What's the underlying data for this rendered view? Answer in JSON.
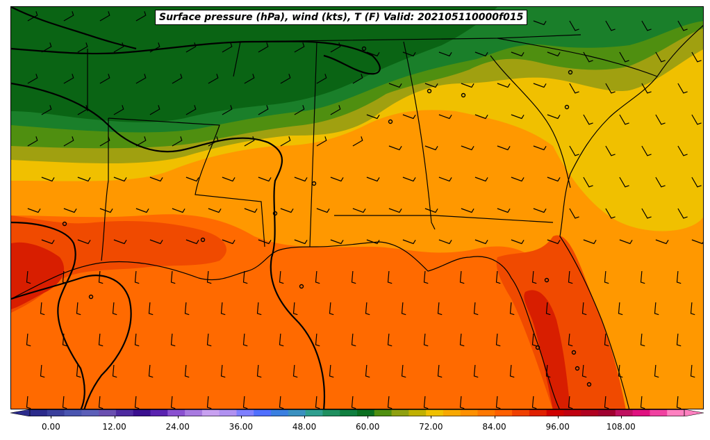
{
  "title": "Surface pressure (hPa), wind (kts), T (F) Valid: 202105110000f015",
  "colorbar": {
    "min": -4,
    "max": 120,
    "step": 3,
    "ticks": [
      {
        "value": 0,
        "label": "0.00"
      },
      {
        "value": 12,
        "label": "12.00"
      },
      {
        "value": 24,
        "label": "24.00"
      },
      {
        "value": 36,
        "label": "36.00"
      },
      {
        "value": 48,
        "label": "48.00"
      },
      {
        "value": 60,
        "label": "60.00"
      },
      {
        "value": 72,
        "label": "72.00"
      },
      {
        "value": 84,
        "label": "84.00"
      },
      {
        "value": 96,
        "label": "96.00"
      },
      {
        "value": 108,
        "label": "108.00"
      }
    ],
    "colors": [
      "#2b2b8c",
      "#3b3f9c",
      "#4a55b0",
      "#5c5fb8",
      "#6a4fb0",
      "#4e2aa0",
      "#3a0f8f",
      "#5a22b0",
      "#8a50d0",
      "#a87ae0",
      "#c8a0f0",
      "#b090f0",
      "#7f7fff",
      "#4f6fff",
      "#3a7fe0",
      "#3a90c0",
      "#2f9f8f",
      "#1f8f5f",
      "#107f3f",
      "#0a6f20",
      "#4f8f10",
      "#8fa010",
      "#c0b000",
      "#f0c000",
      "#f8a800",
      "#ff9000",
      "#ff7800",
      "#ff6000",
      "#f04000",
      "#e02000",
      "#d00000",
      "#c00010",
      "#b00020",
      "#a00030",
      "#c01060",
      "#e01080",
      "#f040a0",
      "#ff80c0"
    ]
  },
  "map_colors": {
    "dark_green": "#0a6414",
    "green": "#1a7f2a",
    "olive": "#4f8f10",
    "olive_yellow": "#a0a010",
    "yellow": "#f0c000",
    "orange_light": "#ff9800",
    "orange": "#ff6a00",
    "red_orange": "#f04a00",
    "red": "#d81e00"
  }
}
